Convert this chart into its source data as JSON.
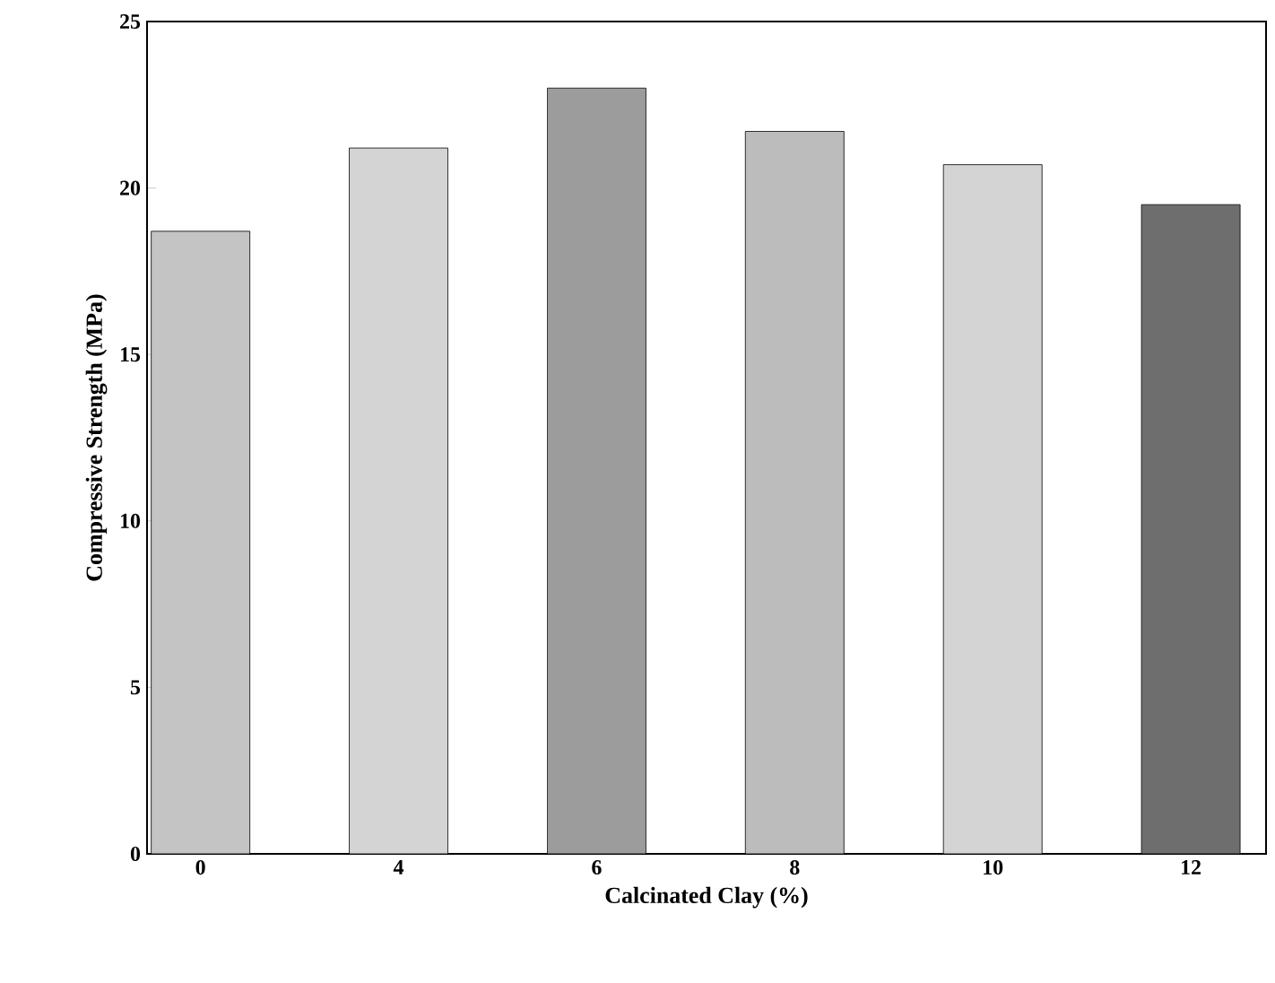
{
  "chart_data": {
    "type": "bar",
    "xlabel": "Calcinated Clay (%)",
    "ylabel": "Compressive Strength (MPa)",
    "categories": [
      "0",
      "4",
      "6",
      "8",
      "10",
      "12"
    ],
    "values": [
      18.7,
      21.2,
      23.0,
      21.7,
      20.7,
      19.5
    ],
    "colors": [
      "#c4c4c4",
      "#d4d4d4",
      "#9c9c9c",
      "#bcbcbc",
      "#d4d4d4",
      "#6e6e6e"
    ],
    "ylim": [
      0,
      25
    ],
    "yticks": [
      0,
      5,
      10,
      15,
      20,
      25
    ],
    "grid": false
  }
}
